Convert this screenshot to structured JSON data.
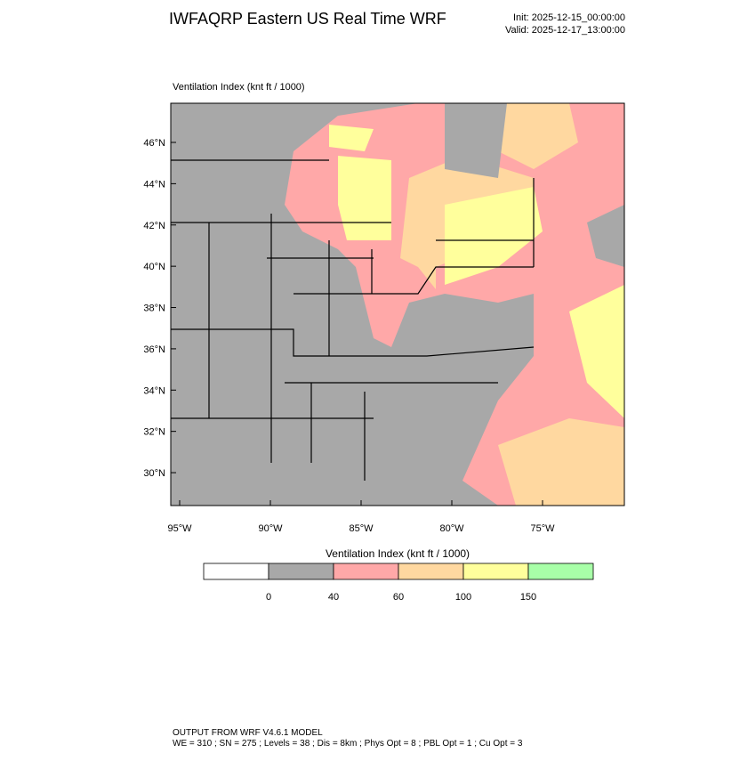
{
  "header": {
    "title": "IWFAQRP Eastern US Real Time WRF",
    "init": "Init: 2025-12-15_00:00:00",
    "valid": "Valid: 2025-12-17_13:00:00"
  },
  "map": {
    "label": "Ventilation Index   (knt ft / 1000)",
    "lat_ticks": [
      {
        "value": 46,
        "label": "46°N"
      },
      {
        "value": 44,
        "label": "44°N"
      },
      {
        "value": 42,
        "label": "42°N"
      },
      {
        "value": 40,
        "label": "40°N"
      },
      {
        "value": 38,
        "label": "38°N"
      },
      {
        "value": 36,
        "label": "36°N"
      },
      {
        "value": 34,
        "label": "34°N"
      },
      {
        "value": 32,
        "label": "32°N"
      },
      {
        "value": 30,
        "label": "30°N"
      }
    ],
    "lon_ticks": [
      {
        "value": -95,
        "label": "95°W"
      },
      {
        "value": -90,
        "label": "90°W"
      },
      {
        "value": -85,
        "label": "85°W"
      },
      {
        "value": -80,
        "label": "80°W"
      },
      {
        "value": -75,
        "label": "75°W"
      }
    ]
  },
  "colorbar": {
    "title": "Ventilation Index  (knt ft / 1000)",
    "levels": [
      0,
      40,
      60,
      100,
      150
    ],
    "colors": [
      "#ffffff",
      "#a8a8a8",
      "#ffa8a8",
      "#ffd8a0",
      "#ffff9c",
      "#a8ffa8"
    ]
  },
  "footer": {
    "line1": "OUTPUT FROM WRF V4.6.1 MODEL",
    "line2": "WE = 310 ; SN = 275 ; Levels = 38 ; Dis = 8km ; Phys Opt = 8 ; PBL Opt = 1 ; Cu Opt = 3"
  }
}
